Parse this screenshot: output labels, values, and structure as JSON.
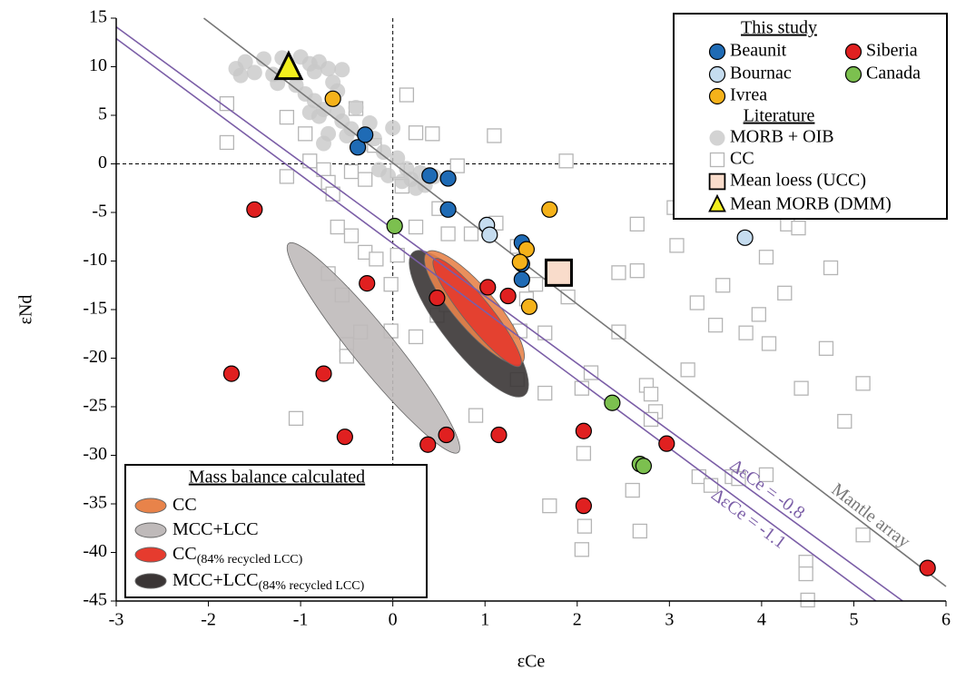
{
  "chart_data": {
    "type": "scatter",
    "xlabel": "εCe",
    "ylabel": "εNd",
    "xlim": [
      -3,
      6
    ],
    "ylim": [
      -45,
      15
    ],
    "xticks": [
      -3,
      -2,
      -1,
      0,
      1,
      2,
      3,
      4,
      5,
      6
    ],
    "yticks": [
      -45,
      -40,
      -35,
      -30,
      -25,
      -20,
      -15,
      -10,
      -5,
      0,
      5,
      10,
      15
    ],
    "vlines": [
      0
    ],
    "hlines": [
      0
    ],
    "legend_titles": [
      "This study",
      "Literature"
    ],
    "series": [
      {
        "name": "Beaunit",
        "group": 0,
        "marker": "circle",
        "color": "#1f6bb5",
        "x": [
          -0.38,
          -0.3,
          0.4,
          0.6,
          0.6,
          1.4,
          1.4,
          1.4
        ],
        "values": [
          1.7,
          3.0,
          -1.2,
          -1.5,
          -4.7,
          -8.1,
          -10.3,
          -11.9
        ]
      },
      {
        "name": "Bournac",
        "group": 0,
        "marker": "circle",
        "color": "#c5dcef",
        "x": [
          1.02,
          1.05,
          3.82
        ],
        "values": [
          -6.3,
          -7.3,
          -7.6
        ]
      },
      {
        "name": "Ivrea",
        "group": 0,
        "marker": "circle",
        "color": "#f5b21a",
        "x": [
          -0.65,
          1.7,
          1.45,
          1.38,
          1.48
        ],
        "values": [
          6.7,
          -4.7,
          -8.8,
          -10.1,
          -14.7
        ]
      },
      {
        "name": "Siberia",
        "group": 0,
        "marker": "circle",
        "color": "#e02020",
        "x": [
          -1.5,
          -0.28,
          -1.75,
          -0.75,
          -0.52,
          0.38,
          0.58,
          1.15,
          0.48,
          1.03,
          1.25,
          2.07,
          2.07,
          2.97,
          5.8
        ],
        "values": [
          -4.7,
          -12.3,
          -21.6,
          -21.6,
          -28.1,
          -28.9,
          -27.9,
          -27.9,
          -13.8,
          -12.7,
          -13.6,
          -27.5,
          -35.2,
          -28.8,
          -41.6
        ]
      },
      {
        "name": "Canada",
        "group": 0,
        "marker": "circle",
        "color": "#7cc04f",
        "x": [
          0.02,
          2.38,
          2.68,
          2.72
        ],
        "values": [
          -6.4,
          -24.6,
          -30.9,
          -31.1
        ]
      },
      {
        "name": "MORB + OIB",
        "group": 1,
        "marker": "disc",
        "color": "#c8c8c8",
        "x": [
          -1.7,
          -1.6,
          -1.5,
          -1.4,
          -1.3,
          -1.2,
          -1.0,
          -0.9,
          -0.85,
          -0.8,
          -0.7,
          -0.55,
          -1.65,
          -1.25,
          -1.05,
          -0.95,
          -0.85,
          -0.75,
          -0.9,
          -0.8,
          -0.6,
          -0.55,
          -0.45,
          -0.7,
          -0.5,
          -0.35,
          -0.2,
          -0.1,
          0.0,
          0.05,
          0.15,
          0.2,
          0.3,
          0.35,
          0.1,
          -0.05,
          0.25,
          -0.75,
          -0.15,
          0.45,
          -1.15,
          -0.65,
          -0.6,
          -0.4,
          -0.25
        ],
        "values": [
          9.8,
          10.5,
          9.4,
          10.8,
          9.2,
          10.9,
          11,
          10.3,
          9.5,
          10.5,
          9.8,
          9.7,
          9.1,
          8.3,
          8.1,
          7.2,
          6.5,
          5.6,
          5.3,
          4.9,
          5.3,
          4.4,
          3.6,
          3.1,
          2.9,
          1.8,
          2.6,
          1.2,
          3.7,
          0.6,
          -0.5,
          -1.6,
          -0.9,
          -2.2,
          -1.8,
          -1.2,
          -2.5,
          2.1,
          -0.6,
          -1.3,
          9.5,
          8.4,
          7.5,
          5.8,
          4.2
        ]
      },
      {
        "name": "CC",
        "group": 1,
        "marker": "square",
        "color": "#b5b5b5",
        "x": [
          -1.8,
          -1.8,
          -1.15,
          -0.95,
          -0.75,
          -0.7,
          -0.65,
          -0.45,
          -0.4,
          -0.2,
          0.15,
          0.25,
          0.43,
          0.7,
          1.1,
          0.05,
          0.1,
          -0.3,
          -0.6,
          -0.45,
          -0.3,
          -0.18,
          0.05,
          0.25,
          0.5,
          -0.7,
          -0.55,
          -0.35,
          -0.5,
          -0.5,
          -0.02,
          -0.02,
          0.25,
          0.48,
          0.58,
          0.75,
          1.02,
          0.85,
          0.6,
          1.12,
          1.35,
          1.55,
          1.45,
          1.65,
          1.35,
          1.65,
          0.9,
          -1.05,
          2.15,
          2.05,
          2.07,
          2.08,
          2.05,
          1.7,
          1.88,
          1.9,
          2.45,
          2.65,
          2.45,
          2.75,
          2.8,
          2.85,
          2.8,
          2.6,
          2.68,
          2.65,
          3.08,
          3.05,
          3.2,
          3.3,
          3.5,
          3.32,
          3.45,
          3.68,
          3.58,
          3.83,
          3.97,
          4.05,
          4.08,
          4.25,
          4.28,
          4.4,
          4.43,
          4.48,
          4.48,
          4.5,
          4.7,
          4.75,
          4.9,
          5.1,
          5.1,
          4.05,
          3.75,
          -1.15,
          -0.9,
          0.8,
          1.38
        ],
        "values": [
          6.2,
          2.2,
          4.8,
          3.1,
          -0.6,
          -1.9,
          -3.1,
          -0.8,
          5.7,
          1.9,
          7.1,
          3.2,
          3.1,
          -0.2,
          2.9,
          -0.7,
          -2.3,
          -1.6,
          -6.5,
          -7.4,
          -9.1,
          -9.8,
          -9.4,
          -6.5,
          -4.6,
          -11.3,
          -13.5,
          -17.3,
          -18.6,
          -19.8,
          -12.4,
          -17.2,
          -17.8,
          -15.6,
          -14.5,
          -14.1,
          -16.1,
          -7.2,
          -7.2,
          -6.1,
          -8.5,
          -12.4,
          -13.9,
          -17.4,
          -22.2,
          -23.6,
          -25.9,
          -26.2,
          -21.5,
          -23.1,
          -29.8,
          -37.3,
          -39.7,
          -35.2,
          0.3,
          -13.7,
          -11.2,
          -11,
          -17.3,
          -22.8,
          -23.7,
          -25.5,
          -26.3,
          -33.6,
          -37.8,
          -6.2,
          -8.4,
          -4.5,
          -21.2,
          -14.3,
          -16.6,
          -32.2,
          -33.1,
          -32.2,
          -12.5,
          -17.4,
          -15.5,
          -9.6,
          -18.5,
          -13.3,
          -6.2,
          -6.6,
          -23.1,
          -41,
          -42.2,
          -44.9,
          -19,
          -10.7,
          -26.5,
          -22.6,
          -38.2,
          -32,
          -32.4,
          -1.3,
          0.3,
          -14,
          -17.2
        ]
      },
      {
        "name": "Mean loess (UCC)",
        "group": 1,
        "marker": "bigsquare",
        "color": "#f9dccb",
        "x": [
          1.8
        ],
        "values": [
          -11.2
        ]
      },
      {
        "name": "Mean MORB (DMM)",
        "group": 1,
        "marker": "triangle",
        "color": "#f2ee1d",
        "x": [
          -1.13
        ],
        "values": [
          9.8
        ]
      }
    ],
    "lines": [
      {
        "name": "Mantle array",
        "color": "#777777",
        "x": [
          -2.05,
          6
        ],
        "values": [
          15,
          -43.5
        ]
      },
      {
        "name": "ΔεCe = -0.8",
        "color": "#7b5ea7",
        "x": [
          -3,
          5.53
        ],
        "values": [
          14.1,
          -45
        ]
      },
      {
        "name": "ΔεCe = -1.1",
        "color": "#7b5ea7",
        "x": [
          -3,
          5.24
        ],
        "values": [
          12.9,
          -45
        ]
      }
    ],
    "ellipse_legend_title": "Mass balance calculated",
    "ellipses": [
      {
        "name": "MCC+LCC",
        "color": "#bfbaba",
        "x": [
          -1.13,
          0.71
        ],
        "y": [
          -8.2,
          -29.7
        ],
        "width": 0.45
      },
      {
        "name": "MCC+LCC",
        "subscript": "(84% recycled LCC)",
        "color": "#3a3535",
        "x": [
          0.22,
          1.43
        ],
        "y": [
          -9.1,
          -23.8
        ],
        "width": 0.58
      },
      {
        "name": "CC",
        "color": "#e8834a",
        "x": [
          0.37,
          1.4
        ],
        "y": [
          -9.1,
          -20.5
        ],
        "width": 0.45
      },
      {
        "name": "CC",
        "subscript": "(84% recycled LCC)",
        "color": "#e63b2e",
        "x": [
          0.45,
          1.38
        ],
        "y": [
          -9.8,
          -20.8
        ],
        "width": 0.3
      }
    ]
  }
}
